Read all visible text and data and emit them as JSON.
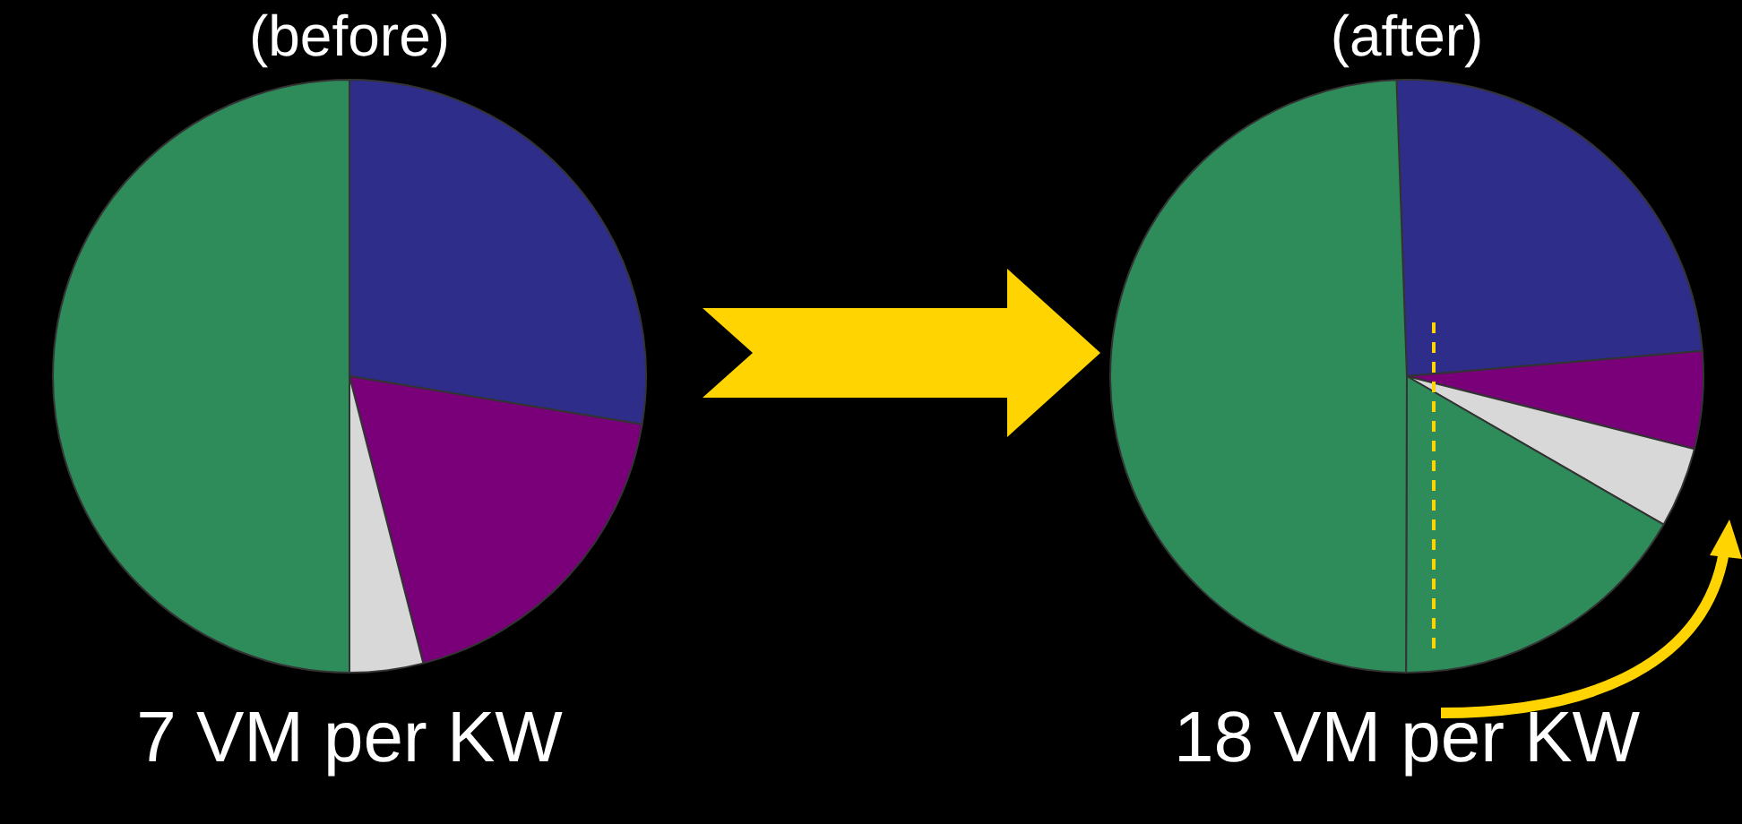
{
  "chart_data": [
    {
      "type": "pie",
      "title": "(before)",
      "categories": [
        null,
        null,
        null,
        null
      ],
      "values": [
        27.6,
        18.4,
        4,
        50
      ],
      "colors": [
        "#2e2e8a",
        "#7a007a",
        "#d8d8d8",
        "#2e8b5a"
      ],
      "annotations": [
        "7 VM per KW"
      ]
    },
    {
      "type": "pie",
      "title": "(after)",
      "categories": [
        null,
        null,
        null,
        null,
        null
      ],
      "values": [
        24.2,
        5.3,
        4.4,
        16.7,
        49.4
      ],
      "colors": [
        "#2e2e8a",
        "#7a007a",
        "#d8d8d8",
        "#2e8b5a",
        "#2e8b5a"
      ],
      "annotations": [
        "18 VM per KW"
      ]
    }
  ]
}
